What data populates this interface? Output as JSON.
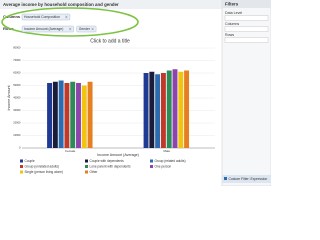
{
  "header": {
    "title": "Average income by household composition and gender"
  },
  "toolbar": {
    "columns_label": "Columns",
    "columns_chips": [
      "Household Composition"
    ],
    "rows_label": "Rows",
    "rows_chips": [
      "Income Amount (Average)",
      "Gender"
    ]
  },
  "filters": {
    "title": "Filters",
    "sections": [
      "Data Level",
      "Columns",
      "Rows"
    ],
    "footer": "Custom Filter: Expression"
  },
  "chart_data": {
    "type": "bar",
    "title": "Click to add a title",
    "x_label": "Income Amount (Average)",
    "y_label": "Income Amount",
    "categories": [
      "Female",
      "Male"
    ],
    "series": [
      {
        "name": "Couple",
        "color": "#1f3a93",
        "values": [
          52000,
          60000
        ]
      },
      {
        "name": "Couple with dependents",
        "color": "#1b1b3a",
        "values": [
          53000,
          61000
        ]
      },
      {
        "name": "Group (related adults)",
        "color": "#2b6cb0",
        "values": [
          54000,
          59000
        ]
      },
      {
        "name": "Group (unrelated adults)",
        "color": "#c0392b",
        "values": [
          52000,
          60000
        ]
      },
      {
        "name": "Lone parent with dependents",
        "color": "#2e8b57",
        "values": [
          53000,
          62000
        ]
      },
      {
        "name": "One person",
        "color": "#8e44ad",
        "values": [
          52000,
          63000
        ]
      },
      {
        "name": "Single (person living alone)",
        "color": "#f1c40f",
        "values": [
          50000,
          61000
        ]
      },
      {
        "name": "Other",
        "color": "#e67e22",
        "values": [
          53000,
          62000
        ]
      }
    ],
    "ylim": [
      0,
      80000
    ],
    "yticks": [
      0,
      10000,
      20000,
      30000,
      40000,
      50000,
      60000,
      70000,
      80000
    ],
    "grid": true,
    "legend": "bottom"
  }
}
